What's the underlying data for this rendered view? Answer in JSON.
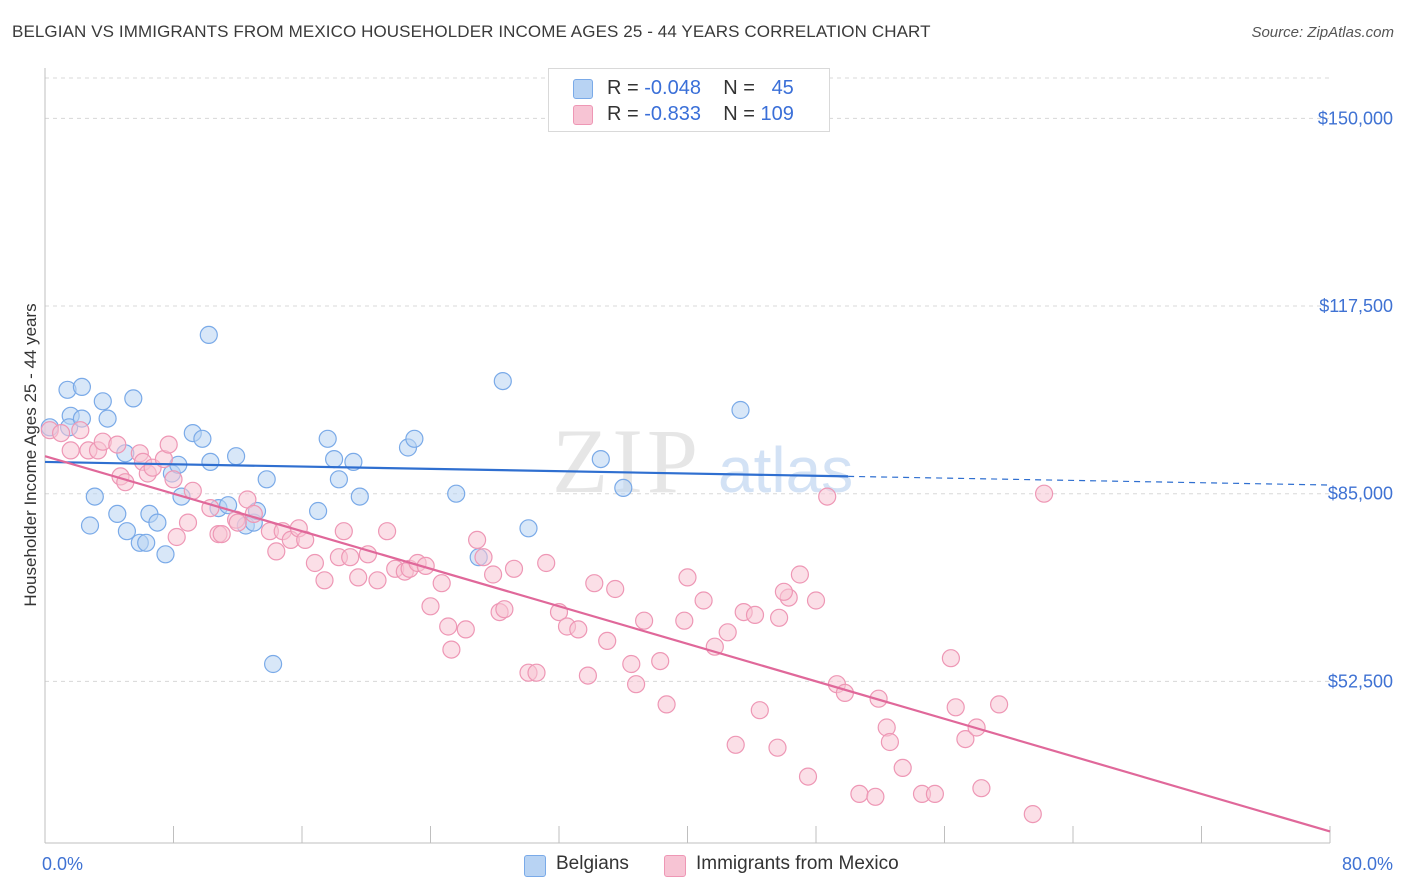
{
  "header": {
    "title": "BELGIAN VS IMMIGRANTS FROM MEXICO HOUSEHOLDER INCOME AGES 25 - 44 YEARS CORRELATION CHART",
    "source": "Source: ZipAtlas.com"
  },
  "watermark": {
    "zip": "ZIP",
    "atlas": "atlas"
  },
  "legend": {
    "rows": [
      {
        "r_label": "R =",
        "r_value": "-0.048",
        "n_label": "N =",
        "n_value": "45",
        "color": "#a9c8f0"
      },
      {
        "r_label": "R =",
        "r_value": "-0.833",
        "n_label": "N =",
        "n_value": "109",
        "color": "#f5b3c8"
      }
    ]
  },
  "bottom_legend": {
    "items": [
      {
        "label": "Belgians",
        "color": "#a9c8f0"
      },
      {
        "label": "Immigrants from Mexico",
        "color": "#f5b3c8"
      }
    ]
  },
  "chart_data": {
    "type": "scatter",
    "title": "BELGIAN VS IMMIGRANTS FROM MEXICO HOUSEHOLDER INCOME AGES 25 - 44 YEARS CORRELATION CHART",
    "ylabel": "Householder Income Ages 25 - 44 years",
    "xlabel": "",
    "xlim": [
      0,
      80
    ],
    "ylim": [
      24500,
      157000
    ],
    "x_tick_labels": [
      "0.0%",
      "80.0%"
    ],
    "y_ticks": [
      52500,
      85000,
      117500,
      150000
    ],
    "y_tick_labels": [
      "$52,500",
      "$85,000",
      "$117,500",
      "$150,000"
    ],
    "grid": true,
    "series": [
      {
        "name": "Belgians",
        "color": "#7aaae8",
        "fill": "#b8d3f3",
        "trend": {
          "x": [
            0,
            50
          ],
          "y": [
            90500,
            88000
          ],
          "dashed_to": [
            80,
            86500
          ],
          "color": "#2f6fd0"
        },
        "points": [
          [
            0.3,
            96.5
          ],
          [
            1.4,
            103.0
          ],
          [
            1.6,
            98.5
          ],
          [
            1.5,
            96.5
          ],
          [
            2.3,
            103.5
          ],
          [
            2.3,
            98.0
          ],
          [
            2.8,
            79.5
          ],
          [
            3.1,
            84.5
          ],
          [
            3.6,
            101.0
          ],
          [
            3.9,
            98.0
          ],
          [
            4.5,
            81.5
          ],
          [
            5.0,
            92.0
          ],
          [
            5.1,
            78.5
          ],
          [
            5.5,
            101.5
          ],
          [
            5.9,
            76.5
          ],
          [
            6.3,
            76.5
          ],
          [
            6.5,
            81.5
          ],
          [
            7.0,
            80.0
          ],
          [
            7.5,
            74.5
          ],
          [
            7.9,
            88.5
          ],
          [
            8.3,
            90.0
          ],
          [
            8.5,
            84.5
          ],
          [
            9.2,
            95.5
          ],
          [
            9.8,
            94.5
          ],
          [
            10.2,
            112.5
          ],
          [
            10.3,
            90.5
          ],
          [
            10.8,
            82.5
          ],
          [
            11.4,
            83.0
          ],
          [
            11.9,
            91.5
          ],
          [
            12.5,
            79.5
          ],
          [
            13.0,
            80.0
          ],
          [
            13.2,
            82.0
          ],
          [
            13.8,
            87.5
          ],
          [
            14.2,
            55.5
          ],
          [
            17.0,
            82.0
          ],
          [
            17.6,
            94.5
          ],
          [
            18.0,
            91.0
          ],
          [
            18.3,
            87.5
          ],
          [
            19.2,
            90.5
          ],
          [
            19.6,
            84.5
          ],
          [
            22.6,
            93.0
          ],
          [
            23.0,
            94.5
          ],
          [
            25.6,
            85.0
          ],
          [
            27.0,
            74.0
          ],
          [
            28.5,
            104.5
          ],
          [
            30.1,
            79.0
          ],
          [
            34.6,
            91.0
          ],
          [
            36.0,
            86.0
          ],
          [
            43.3,
            99.5
          ]
        ]
      },
      {
        "name": "Immigrants from Mexico",
        "color": "#ee97b5",
        "fill": "#f7c4d4",
        "trend": {
          "x": [
            0,
            80
          ],
          "y": [
            91500,
            26500
          ],
          "color": "#e0689a"
        },
        "points": [
          [
            0.3,
            96.0
          ],
          [
            1.0,
            95.5
          ],
          [
            1.6,
            92.5
          ],
          [
            2.2,
            96.0
          ],
          [
            2.7,
            92.5
          ],
          [
            3.3,
            92.5
          ],
          [
            3.6,
            94.0
          ],
          [
            4.5,
            93.5
          ],
          [
            4.7,
            88.0
          ],
          [
            5.0,
            87.0
          ],
          [
            5.9,
            92.0
          ],
          [
            6.1,
            90.5
          ],
          [
            6.4,
            88.5
          ],
          [
            6.7,
            89.5
          ],
          [
            7.4,
            91.0
          ],
          [
            7.7,
            93.5
          ],
          [
            8.0,
            87.5
          ],
          [
            8.2,
            77.5
          ],
          [
            8.9,
            80.0
          ],
          [
            9.2,
            85.5
          ],
          [
            10.3,
            82.5
          ],
          [
            10.8,
            78.0
          ],
          [
            11.0,
            78.0
          ],
          [
            11.9,
            80.5
          ],
          [
            12.0,
            80.0
          ],
          [
            12.6,
            84.0
          ],
          [
            13.0,
            81.5
          ],
          [
            14.0,
            78.5
          ],
          [
            14.4,
            75.0
          ],
          [
            14.8,
            78.5
          ],
          [
            15.3,
            77.0
          ],
          [
            15.8,
            79.0
          ],
          [
            16.2,
            77.0
          ],
          [
            16.8,
            73.0
          ],
          [
            17.4,
            70.0
          ],
          [
            18.3,
            74.0
          ],
          [
            18.6,
            78.5
          ],
          [
            19.0,
            74.0
          ],
          [
            19.5,
            70.5
          ],
          [
            20.1,
            74.5
          ],
          [
            20.7,
            70.0
          ],
          [
            21.3,
            78.5
          ],
          [
            21.8,
            72.0
          ],
          [
            22.4,
            71.5
          ],
          [
            22.7,
            72.0
          ],
          [
            23.2,
            73.0
          ],
          [
            23.7,
            72.5
          ],
          [
            24.0,
            65.5
          ],
          [
            24.7,
            69.5
          ],
          [
            25.1,
            62.0
          ],
          [
            25.3,
            58.0
          ],
          [
            26.2,
            61.5
          ],
          [
            26.9,
            77.0
          ],
          [
            27.3,
            74.0
          ],
          [
            27.9,
            71.0
          ],
          [
            28.3,
            64.5
          ],
          [
            28.6,
            65.0
          ],
          [
            29.2,
            72.0
          ],
          [
            30.1,
            54.0
          ],
          [
            30.6,
            54.0
          ],
          [
            31.2,
            73.0
          ],
          [
            32.0,
            64.5
          ],
          [
            32.5,
            62.0
          ],
          [
            33.2,
            61.5
          ],
          [
            33.8,
            53.5
          ],
          [
            34.2,
            69.5
          ],
          [
            35.0,
            59.5
          ],
          [
            35.5,
            68.5
          ],
          [
            36.5,
            55.5
          ],
          [
            36.8,
            52.0
          ],
          [
            37.3,
            63.0
          ],
          [
            38.3,
            56.0
          ],
          [
            38.7,
            48.5
          ],
          [
            39.8,
            63.0
          ],
          [
            40.0,
            70.5
          ],
          [
            41.0,
            66.5
          ],
          [
            41.7,
            58.5
          ],
          [
            42.5,
            61.0
          ],
          [
            43.0,
            41.5
          ],
          [
            43.5,
            64.5
          ],
          [
            44.2,
            64.0
          ],
          [
            44.5,
            47.5
          ],
          [
            45.6,
            41.0
          ],
          [
            46.3,
            67.0
          ],
          [
            47.5,
            36.0
          ],
          [
            48.0,
            66.5
          ],
          [
            49.3,
            52.0
          ],
          [
            49.8,
            50.5
          ],
          [
            50.7,
            33.0
          ],
          [
            51.7,
            32.5
          ],
          [
            51.9,
            49.5
          ],
          [
            52.4,
            44.5
          ],
          [
            52.6,
            42.0
          ],
          [
            53.4,
            37.5
          ],
          [
            54.6,
            33.0
          ],
          [
            55.4,
            33.0
          ],
          [
            56.4,
            56.5
          ],
          [
            56.7,
            48.0
          ],
          [
            57.3,
            42.5
          ],
          [
            58.0,
            44.5
          ],
          [
            58.3,
            34.0
          ],
          [
            59.4,
            48.5
          ],
          [
            61.5,
            29.5
          ],
          [
            62.2,
            85.0
          ],
          [
            48.7,
            84.5
          ],
          [
            47.0,
            71.0
          ],
          [
            46.0,
            68.0
          ],
          [
            45.7,
            63.5
          ]
        ]
      }
    ]
  }
}
